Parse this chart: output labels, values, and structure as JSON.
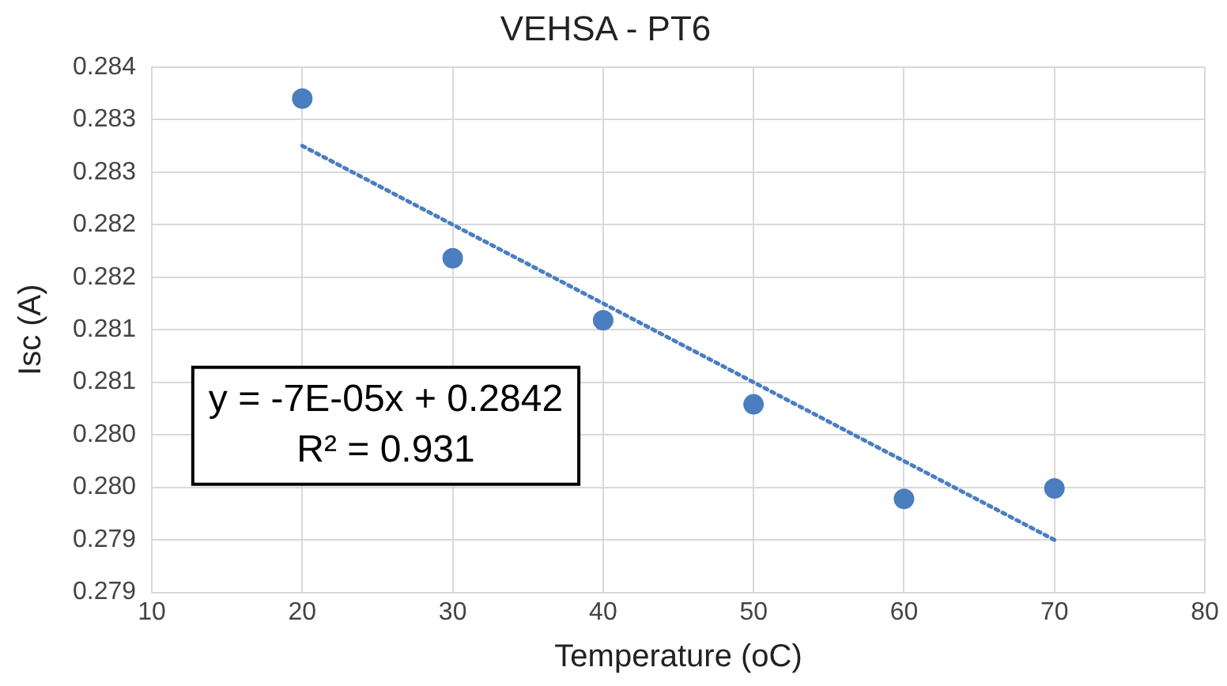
{
  "chart_data": {
    "type": "scatter",
    "title": "VEHSA - PT6",
    "xlabel": "Temperature (oC)",
    "ylabel": "Isc (A)",
    "x": [
      20,
      30,
      40,
      50,
      60,
      70
    ],
    "series": [
      {
        "type": "scatter",
        "color": "#4a7ebf",
        "values": [
          0.2837,
          0.28218,
          0.28159,
          0.28079,
          0.27989,
          0.27999
        ],
        "marker": "circle"
      },
      {
        "type": "line",
        "color": "#4a7ebf",
        "x": [
          20,
          70
        ],
        "values": [
          0.28325,
          0.2795
        ],
        "line_style": "dotted",
        "marker": "none"
      }
    ],
    "xlim": [
      10,
      80
    ],
    "xticks": [
      10,
      20,
      30,
      40,
      50,
      60,
      70,
      80
    ],
    "ylim": [
      0.279,
      0.284
    ],
    "yticks": [
      {
        "value": 0.279,
        "label": "0.279"
      },
      {
        "value": 0.2795,
        "label": "0.279"
      },
      {
        "value": 0.28,
        "label": "0.280"
      },
      {
        "value": 0.2805,
        "label": "0.280"
      },
      {
        "value": 0.281,
        "label": "0.281"
      },
      {
        "value": 0.2815,
        "label": "0.281"
      },
      {
        "value": 0.282,
        "label": "0.282"
      },
      {
        "value": 0.2825,
        "label": "0.282"
      },
      {
        "value": 0.283,
        "label": "0.283"
      },
      {
        "value": 0.2835,
        "label": "0.283"
      },
      {
        "value": 0.284,
        "label": "0.284"
      }
    ],
    "annotations": [
      "y = -7E-05x + 0.2842",
      "R² = 0.931"
    ],
    "grid": true,
    "legend": false
  }
}
